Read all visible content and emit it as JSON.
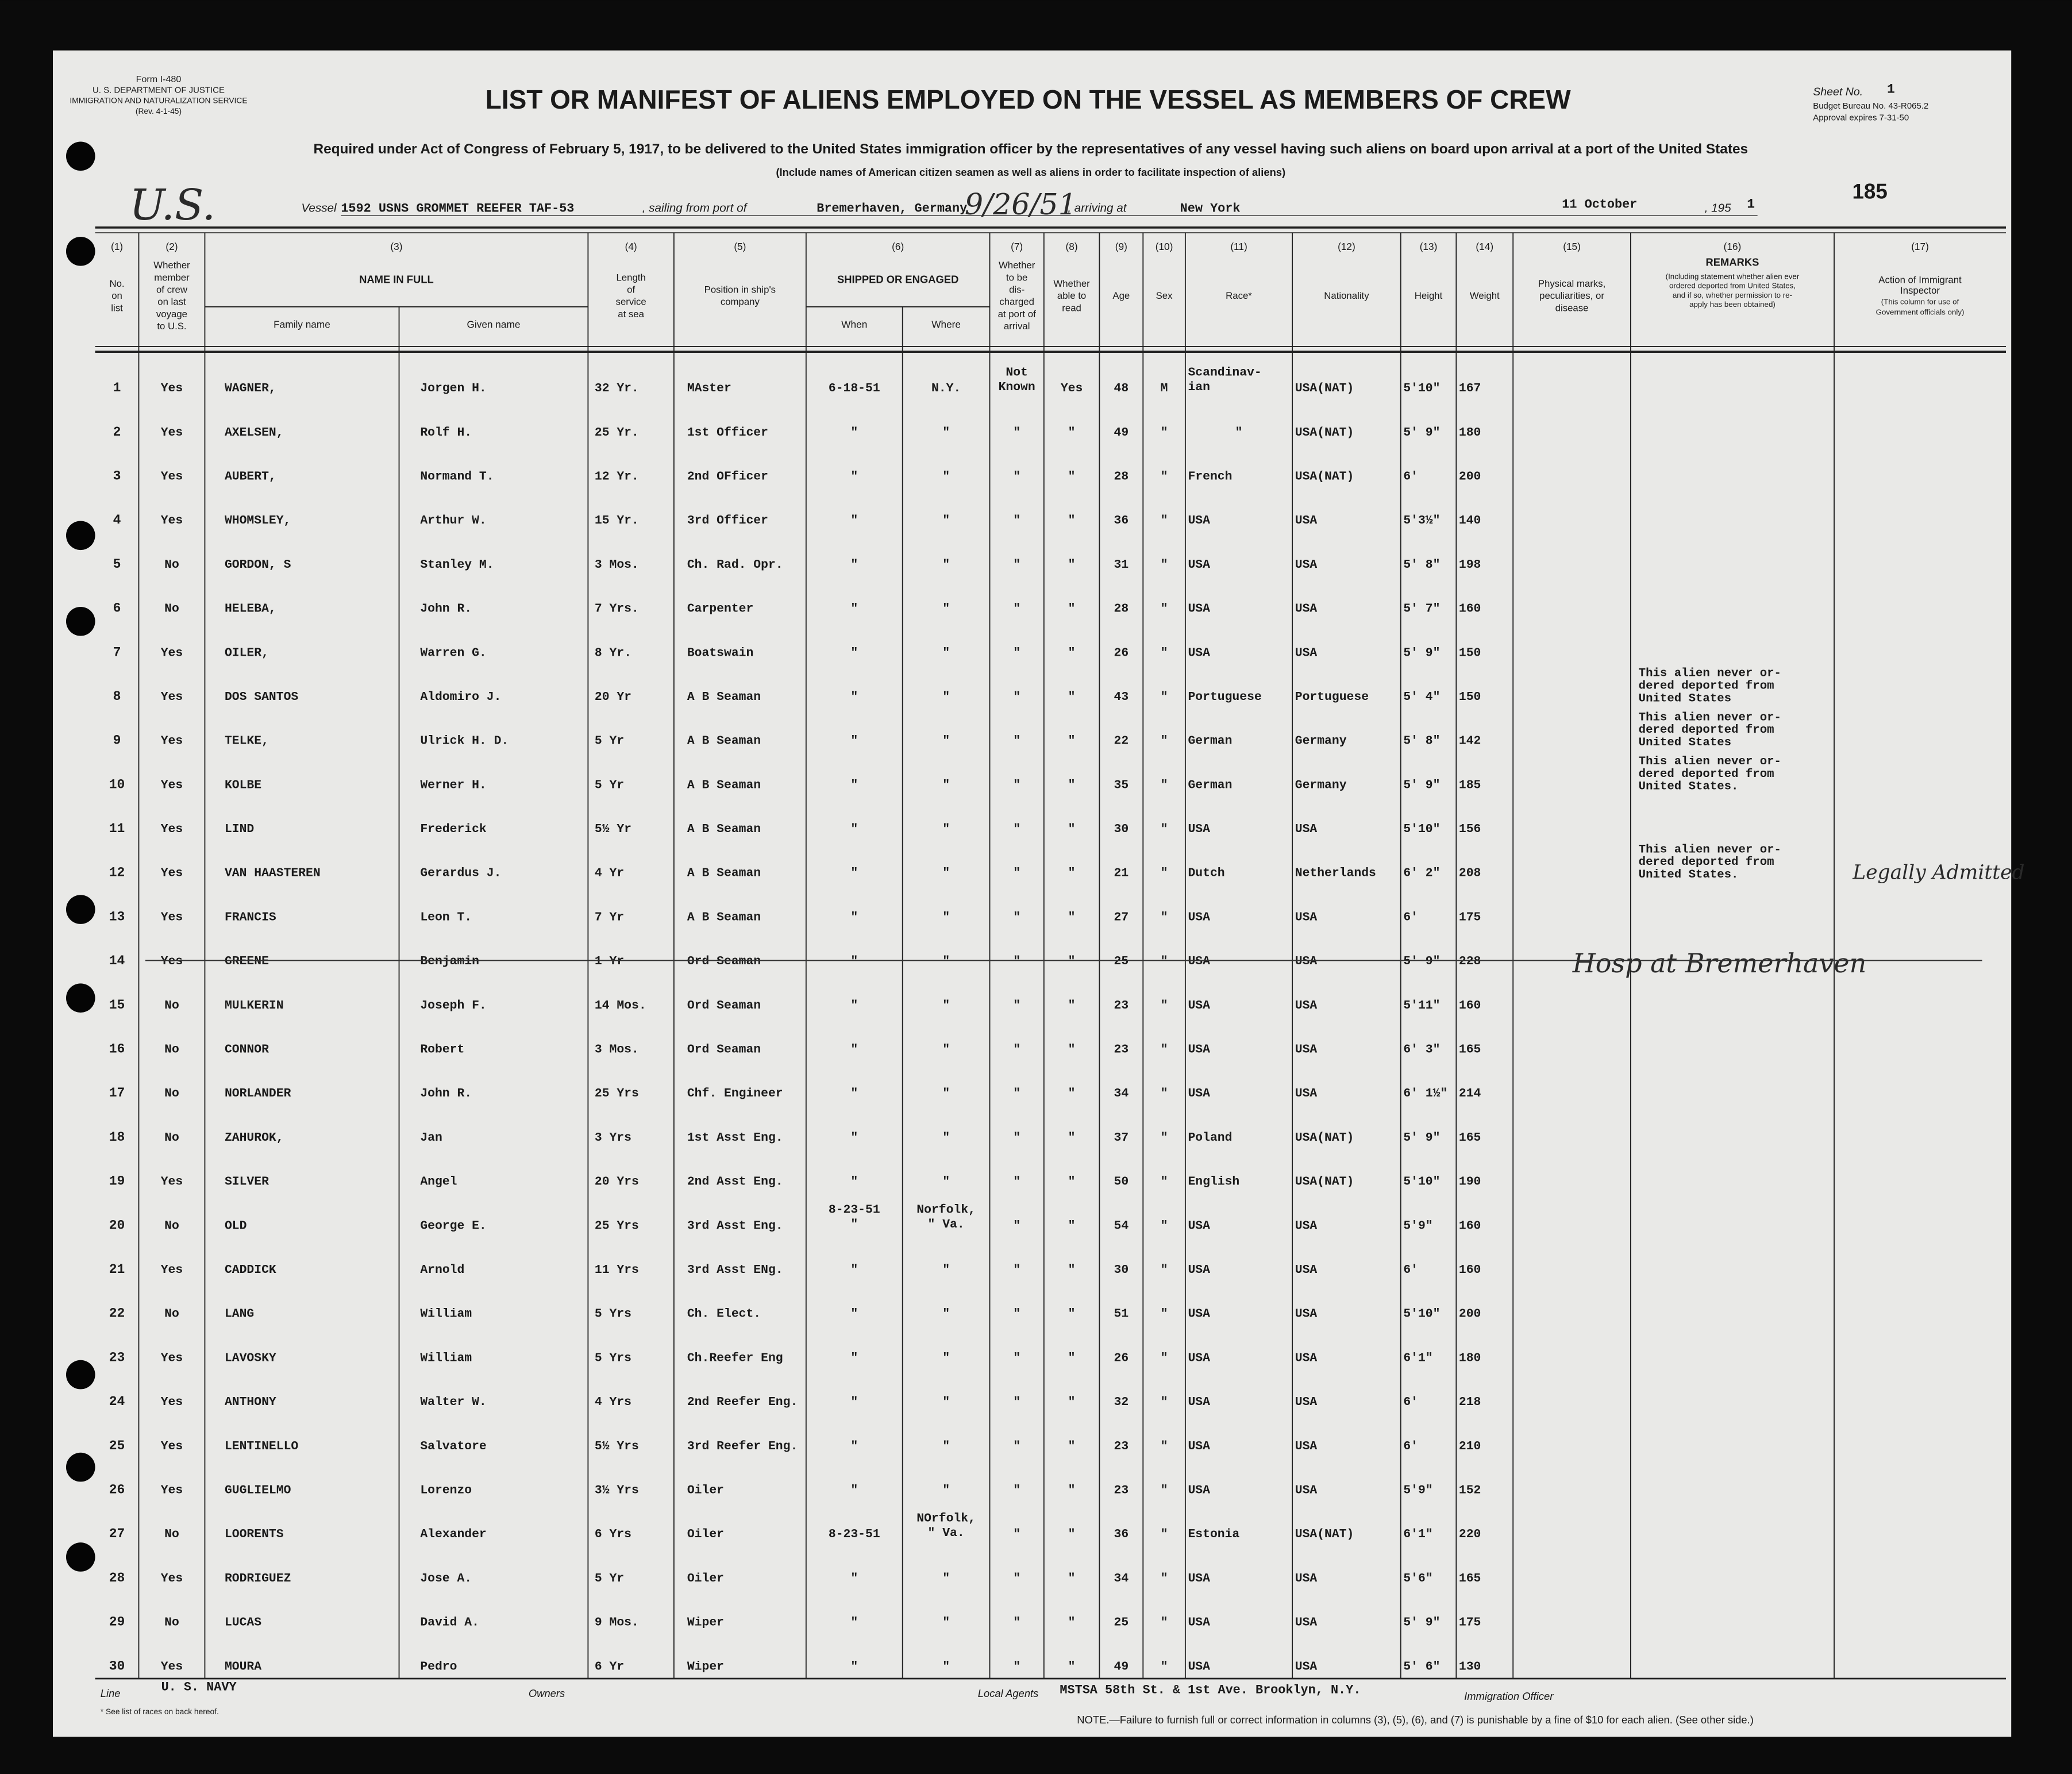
{
  "form": {
    "number": "Form I-480",
    "dept": "U. S. DEPARTMENT OF JUSTICE",
    "service": "IMMIGRATION AND NATURALIZATION SERVICE",
    "rev": "(Rev. 4-1-45)"
  },
  "title": "LIST OR MANIFEST OF ALIENS EMPLOYED ON THE VESSEL AS MEMBERS OF CREW",
  "sheet": {
    "label": "Sheet No.",
    "number": "1",
    "budget": "Budget Bureau No. 43-R065.2",
    "approval": "Approval expires 7-31-50"
  },
  "subtitle": "Required under Act of Congress of February 5, 1917, to be delivered to the United States immigration officer by the representatives of any vessel having such aliens on board upon arrival at a port of the United States",
  "note": "(Include names of American citizen seamen as well as aliens in order to facilitate inspection of aliens)",
  "stamp": "185",
  "vessel": {
    "country_hw": "U.S.",
    "label": "Vessel",
    "name": "1592 USNS GROMMET REEFER TAF-53",
    "sailing_label": ", sailing from port of",
    "port": "Bremerhaven, Germany",
    "date_hw": "9/26/51",
    "arriving_label": ", arriving at",
    "destination": "New York",
    "date": "11 October",
    "year_label": ", 195",
    "year_digit": "1"
  },
  "columns": [
    {
      "num": "(1)",
      "label": [
        "No.",
        "on",
        "list"
      ]
    },
    {
      "num": "(2)",
      "label": [
        "Whether",
        "member",
        "of crew",
        "on last",
        "voyage",
        "to U.S."
      ]
    },
    {
      "num": "(3)",
      "label": [
        "NAME IN FULL"
      ],
      "sub": [
        "Family name",
        "Given name"
      ]
    },
    {
      "num": "(4)",
      "label": [
        "Length",
        "of",
        "service",
        "at sea"
      ]
    },
    {
      "num": "(5)",
      "label": [
        "Position in ship's",
        "company"
      ]
    },
    {
      "num": "(6)",
      "label": [
        "SHIPPED OR ENGAGED"
      ],
      "sub": [
        "When",
        "Where"
      ]
    },
    {
      "num": "(7)",
      "label": [
        "Whether",
        "to be",
        "dis-",
        "charged",
        "at port of",
        "arrival"
      ]
    },
    {
      "num": "(8)",
      "label": [
        "Whether",
        "able to",
        "read"
      ]
    },
    {
      "num": "(9)",
      "label": [
        "Age"
      ]
    },
    {
      "num": "(10)",
      "label": [
        "Sex"
      ]
    },
    {
      "num": "(11)",
      "label": [
        "Race*"
      ]
    },
    {
      "num": "(12)",
      "label": [
        "Nationality"
      ]
    },
    {
      "num": "(13)",
      "label": [
        "Height"
      ]
    },
    {
      "num": "(14)",
      "label": [
        "Weight"
      ]
    },
    {
      "num": "(15)",
      "label": [
        "Physical marks,",
        "peculiarities, or",
        "disease"
      ]
    },
    {
      "num": "(16)",
      "label": [
        "REMARKS",
        "(Including statement whether alien ever",
        "ordered deported from United States,",
        "and if so, whether permission to re-",
        "apply has been obtained)"
      ]
    },
    {
      "num": "(17)",
      "label": [
        "Action of Immigrant",
        "Inspector",
        "(This column for use of",
        "Government officials only)"
      ]
    }
  ],
  "rows": [
    {
      "n": "1",
      "m": "Yes",
      "fam": "WAGNER,",
      "giv": "Jorgen H.",
      "svc": "32 Yr.",
      "pos": "MAster",
      "when": "6-18-51",
      "where": "N.Y.",
      "dis": [
        "Not",
        "Known"
      ],
      "read": "Yes",
      "age": "48",
      "sex": "M",
      "race": [
        "Scandinav-",
        "ian"
      ],
      "nat": "USA(NAT)",
      "ht": "5'10\"",
      "wt": "167"
    },
    {
      "n": "2",
      "m": "Yes",
      "fam": "AXELSEN,",
      "giv": "Rolf H.",
      "svc": "25 Yr.",
      "pos": "1st Officer",
      "when": "\"",
      "where": "\"",
      "dis": "\"",
      "read": "\"",
      "age": "49",
      "sex": "\"",
      "race": "\"",
      "nat": "USA(NAT)",
      "ht": "5' 9\"",
      "wt": "180"
    },
    {
      "n": "3",
      "m": "Yes",
      "fam": "AUBERT,",
      "giv": "Normand T.",
      "svc": "12 Yr.",
      "pos": "2nd OFficer",
      "when": "\"",
      "where": "\"",
      "dis": "\"",
      "read": "\"",
      "age": "28",
      "sex": "\"",
      "race": "French",
      "nat": "USA(NAT)",
      "ht": "6'",
      "wt": "200"
    },
    {
      "n": "4",
      "m": "Yes",
      "fam": "WHOMSLEY,",
      "giv": "Arthur W.",
      "svc": "15 Yr.",
      "pos": "3rd Officer",
      "when": "\"",
      "where": "\"",
      "dis": "\"",
      "read": "\"",
      "age": "36",
      "sex": "\"",
      "race": "USA",
      "nat": "USA",
      "ht": "5'3½\"",
      "wt": "140"
    },
    {
      "n": "5",
      "m": "No",
      "fam": "GORDON, S",
      "giv": "Stanley M.",
      "svc": "3 Mos.",
      "pos": "Ch. Rad. Opr.",
      "when": "\"",
      "where": "\"",
      "dis": "\"",
      "read": "\"",
      "age": "31",
      "sex": "\"",
      "race": "USA",
      "nat": "USA",
      "ht": "5' 8\"",
      "wt": "198"
    },
    {
      "n": "6",
      "m": "No",
      "fam": "HELEBA,",
      "giv": "John R.",
      "svc": "7 Yrs.",
      "pos": "Carpenter",
      "when": "\"",
      "where": "\"",
      "dis": "\"",
      "read": "\"",
      "age": "28",
      "sex": "\"",
      "race": "USA",
      "nat": "USA",
      "ht": "5' 7\"",
      "wt": "160"
    },
    {
      "n": "7",
      "m": "Yes",
      "fam": "OILER,",
      "giv": "Warren G.",
      "svc": "8 Yr.",
      "pos": "Boatswain",
      "when": "\"",
      "where": "\"",
      "dis": "\"",
      "read": "\"",
      "age": "26",
      "sex": "\"",
      "race": "USA",
      "nat": "USA",
      "ht": "5' 9\"",
      "wt": "150"
    },
    {
      "n": "8",
      "m": "Yes",
      "fam": "DOS SANTOS",
      "giv": "Aldomiro J.",
      "svc": "20 Yr",
      "pos": "A B Seaman",
      "when": "\"",
      "where": "\"",
      "dis": "\"",
      "read": "\"",
      "age": "43",
      "sex": "\"",
      "race": "Portuguese",
      "nat": "Portuguese",
      "ht": "5' 4\"",
      "wt": "150",
      "rem": [
        "This alien never or-",
        "dered deported from",
        "United States"
      ]
    },
    {
      "n": "9",
      "m": "Yes",
      "fam": "TELKE,",
      "giv": "Ulrick H. D.",
      "svc": "5 Yr",
      "pos": "A B Seaman",
      "when": "\"",
      "where": "\"",
      "dis": "\"",
      "read": "\"",
      "age": "22",
      "sex": "\"",
      "race": "German",
      "nat": "Germany",
      "ht": "5' 8\"",
      "wt": "142",
      "rem": [
        "This alien never or-",
        "dered deported from",
        "United States"
      ]
    },
    {
      "n": "10",
      "m": "Yes",
      "fam": "KOLBE",
      "giv": "Werner H.",
      "svc": "5 Yr",
      "pos": "A B Seaman",
      "when": "\"",
      "where": "\"",
      "dis": "\"",
      "read": "\"",
      "age": "35",
      "sex": "\"",
      "race": "German",
      "nat": "Germany",
      "ht": "5' 9\"",
      "wt": "185",
      "rem": [
        "This alien never or-",
        "dered deported from",
        "United States."
      ]
    },
    {
      "n": "11",
      "m": "Yes",
      "fam": "LIND",
      "giv": "Frederick",
      "svc": "5½ Yr",
      "pos": "A B Seaman",
      "when": "\"",
      "where": "\"",
      "dis": "\"",
      "read": "\"",
      "age": "30",
      "sex": "\"",
      "race": "USA",
      "nat": "USA",
      "ht": "5'10\"",
      "wt": "156"
    },
    {
      "n": "12",
      "m": "Yes",
      "fam": "VAN HAASTEREN",
      "giv": "Gerardus J.",
      "svc": "4 Yr",
      "pos": "A B Seaman",
      "when": "\"",
      "where": "\"",
      "dis": "\"",
      "read": "\"",
      "age": "21",
      "sex": "\"",
      "race": "Dutch",
      "nat": "Netherlands",
      "ht": "6' 2\"",
      "wt": "208",
      "rem": [
        "This alien never or-",
        "dered deported from",
        "United States."
      ],
      "act": "Legally Admitted"
    },
    {
      "n": "13",
      "m": "Yes",
      "fam": "FRANCIS",
      "giv": "Leon T.",
      "svc": "7 Yr",
      "pos": "A B Seaman",
      "when": "\"",
      "where": "\"",
      "dis": "\"",
      "read": "\"",
      "age": "27",
      "sex": "\"",
      "race": "USA",
      "nat": "USA",
      "ht": "6'",
      "wt": "175"
    },
    {
      "n": "14",
      "m": "Yes",
      "fam": "GREENE",
      "giv": "Benjamin",
      "svc": "1 Yr",
      "pos": "Ord Seaman",
      "when": "\"",
      "where": "\"",
      "dis": "\"",
      "read": "\"",
      "age": "25",
      "sex": "\"",
      "race": "USA",
      "nat": "USA",
      "ht": "5' 9\"",
      "wt": "228",
      "hw": "Hosp at Bremerhaven"
    },
    {
      "n": "15",
      "m": "No",
      "fam": "MULKERIN",
      "giv": "Joseph F.",
      "svc": "14 Mos.",
      "pos": "Ord Seaman",
      "when": "\"",
      "where": "\"",
      "dis": "\"",
      "read": "\"",
      "age": "23",
      "sex": "\"",
      "race": "USA",
      "nat": "USA",
      "ht": "5'11\"",
      "wt": "160"
    },
    {
      "n": "16",
      "m": "No",
      "fam": "CONNOR",
      "giv": "Robert",
      "svc": "3 Mos.",
      "pos": "Ord Seaman",
      "when": "\"",
      "where": "\"",
      "dis": "\"",
      "read": "\"",
      "age": "23",
      "sex": "\"",
      "race": "USA",
      "nat": "USA",
      "ht": "6' 3\"",
      "wt": "165"
    },
    {
      "n": "17",
      "m": "No",
      "fam": "NORLANDER",
      "giv": "John R.",
      "svc": "25 Yrs",
      "pos": "Chf. Engineer",
      "when": "\"",
      "where": "\"",
      "dis": "\"",
      "read": "\"",
      "age": "34",
      "sex": "\"",
      "race": "USA",
      "nat": "USA",
      "ht": "6' 1½\"",
      "wt": "214"
    },
    {
      "n": "18",
      "m": "No",
      "fam": "ZAHUROK,",
      "giv": "Jan",
      "svc": "3 Yrs",
      "pos": "1st Asst Eng.",
      "when": "\"",
      "where": "\"",
      "dis": "\"",
      "read": "\"",
      "age": "37",
      "sex": "\"",
      "race": "Poland",
      "nat": "USA(NAT)",
      "ht": "5' 9\"",
      "wt": "165"
    },
    {
      "n": "19",
      "m": "Yes",
      "fam": "SILVER",
      "giv": "Angel",
      "svc": "20 Yrs",
      "pos": "2nd Asst Eng.",
      "when": "\"",
      "where": "\"",
      "dis": "\"",
      "read": "\"",
      "age": "50",
      "sex": "\"",
      "race": "English",
      "nat": "USA(NAT)",
      "ht": "5'10\"",
      "wt": "190"
    },
    {
      "n": "20",
      "m": "No",
      "fam": "OLD",
      "giv": "George E.",
      "svc": "25 Yrs",
      "pos": "3rd Asst Eng.",
      "when": [
        "8-23-51",
        "\""
      ],
      "where": [
        "Norfolk,",
        "\" Va."
      ],
      "dis": "\"",
      "read": "\"",
      "age": "54",
      "sex": "\"",
      "race": "USA",
      "nat": "USA",
      "ht": "5'9\"",
      "wt": "160"
    },
    {
      "n": "21",
      "m": "Yes",
      "fam": "CADDICK",
      "giv": "Arnold",
      "svc": "11 Yrs",
      "pos": "3rd Asst ENg.",
      "when": "\"",
      "where": "\"",
      "dis": "\"",
      "read": "\"",
      "age": "30",
      "sex": "\"",
      "race": "USA",
      "nat": "USA",
      "ht": "6'",
      "wt": "160"
    },
    {
      "n": "22",
      "m": "No",
      "fam": "LANG",
      "giv": "William",
      "svc": "5 Yrs",
      "pos": "Ch. Elect.",
      "when": "\"",
      "where": "\"",
      "dis": "\"",
      "read": "\"",
      "age": "51",
      "sex": "\"",
      "race": "USA",
      "nat": "USA",
      "ht": "5'10\"",
      "wt": "200"
    },
    {
      "n": "23",
      "m": "Yes",
      "fam": "LAVOSKY",
      "giv": "William",
      "svc": "5 Yrs",
      "pos": "Ch.Reefer Eng",
      "when": "\"",
      "where": "\"",
      "dis": "\"",
      "read": "\"",
      "age": "26",
      "sex": "\"",
      "race": "USA",
      "nat": "USA",
      "ht": "6'1\"",
      "wt": "180"
    },
    {
      "n": "24",
      "m": "Yes",
      "fam": "ANTHONY",
      "giv": "Walter W.",
      "svc": "4 Yrs",
      "pos": "2nd Reefer Eng.",
      "when": "\"",
      "where": "\"",
      "dis": "\"",
      "read": "\"",
      "age": "32",
      "sex": "\"",
      "race": "USA",
      "nat": "USA",
      "ht": "6'",
      "wt": "218"
    },
    {
      "n": "25",
      "m": "Yes",
      "fam": "LENTINELLO",
      "giv": "Salvatore",
      "svc": "5½ Yrs",
      "pos": "3rd Reefer Eng.",
      "when": "\"",
      "where": "\"",
      "dis": "\"",
      "read": "\"",
      "age": "23",
      "sex": "\"",
      "race": "USA",
      "nat": "USA",
      "ht": "6'",
      "wt": "210"
    },
    {
      "n": "26",
      "m": "Yes",
      "fam": "GUGLIELMO",
      "giv": "Lorenzo",
      "svc": "3½ Yrs",
      "pos": "Oiler",
      "when": "\"",
      "where": "\"",
      "dis": "\"",
      "read": "\"",
      "age": "23",
      "sex": "\"",
      "race": "USA",
      "nat": "USA",
      "ht": "5'9\"",
      "wt": "152"
    },
    {
      "n": "27",
      "m": "No",
      "fam": "LOORENTS",
      "giv": "Alexander",
      "svc": "6 Yrs",
      "pos": "Oiler",
      "when": "8-23-51",
      "where": [
        "NOrfolk,",
        "\" Va."
      ],
      "dis": "\"",
      "read": "\"",
      "age": "36",
      "sex": "\"",
      "race": "Estonia",
      "nat": "USA(NAT)",
      "ht": "6'1\"",
      "wt": "220"
    },
    {
      "n": "28",
      "m": "Yes",
      "fam": "RODRIGUEZ",
      "giv": "Jose A.",
      "svc": "5 Yr",
      "pos": "Oiler",
      "when": "\"",
      "where": "\"",
      "dis": "\"",
      "read": "\"",
      "age": "34",
      "sex": "\"",
      "race": "USA",
      "nat": "USA",
      "ht": "5'6\"",
      "wt": "165"
    },
    {
      "n": "29",
      "m": "No",
      "fam": "LUCAS",
      "giv": "David A.",
      "svc": "9 Mos.",
      "pos": "Wiper",
      "when": "\"",
      "where": "\"",
      "dis": "\"",
      "read": "\"",
      "age": "25",
      "sex": "\"",
      "race": "USA",
      "nat": "USA",
      "ht": "5' 9\"",
      "wt": "175"
    },
    {
      "n": "30",
      "m": "Yes",
      "fam": "MOURA",
      "giv": "Pedro",
      "svc": "6 Yr",
      "pos": "Wiper",
      "when": "\"",
      "where": "\"",
      "dis": "\"",
      "read": "\"",
      "age": "49",
      "sex": "\"",
      "race": "USA",
      "nat": "USA",
      "ht": "5' 6\"",
      "wt": "130"
    }
  ],
  "footer": {
    "line_label": "Line",
    "line": "U. S. NAVY",
    "owners_label": "Owners",
    "agents_label": "Local Agents",
    "agents": "MSTSA 58th St. & 1st Ave. Brooklyn, N.Y.",
    "officer_label": "Immigration Officer",
    "races_note": "* See list of races on back hereof.",
    "note": "NOTE.—Failure to furnish full or correct information in columns (3), (5), (6), and (7) is punishable by a fine of $10 for each alien. (See other side.)"
  }
}
